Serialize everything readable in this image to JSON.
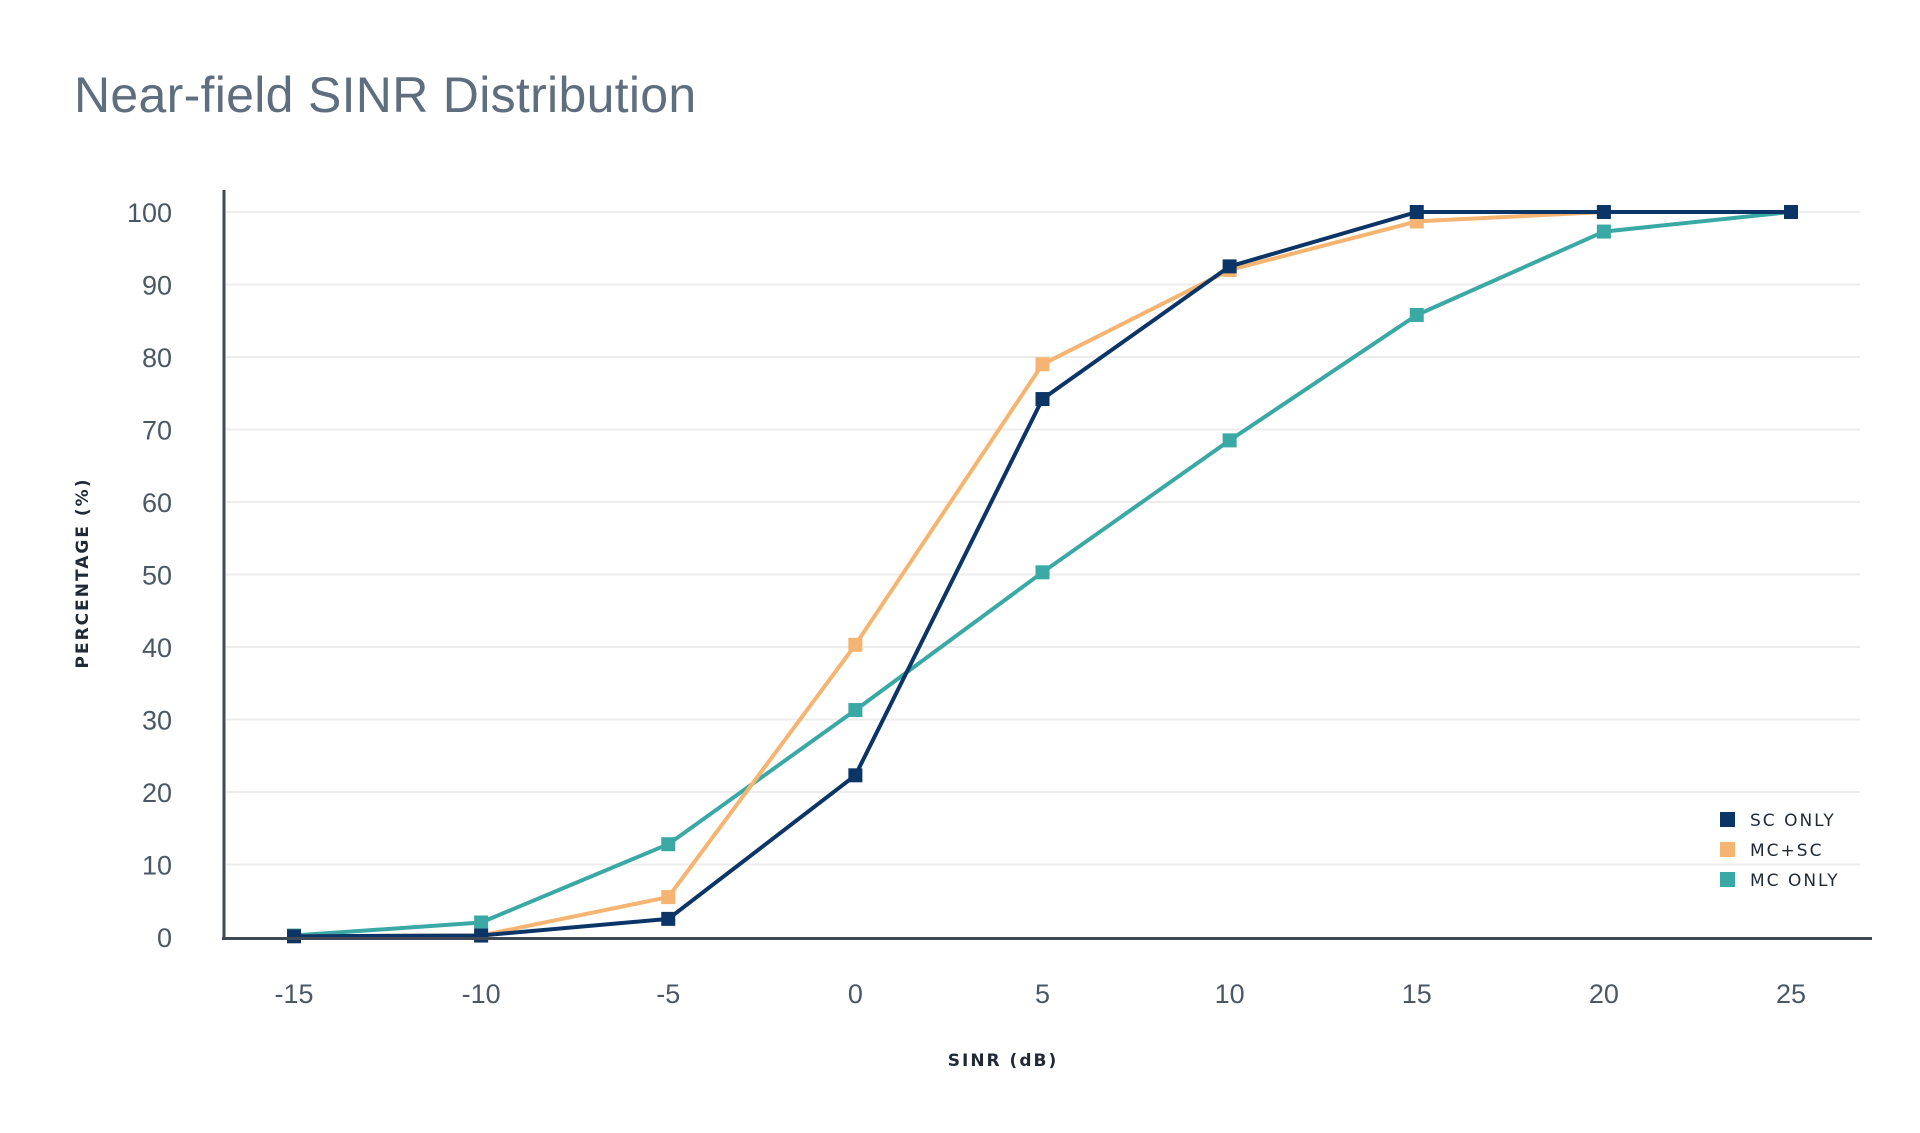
{
  "chart_data": {
    "type": "line",
    "title": "Near-field SINR Distribution",
    "xlabel": "SINR (dB)",
    "ylabel": "PERCENTAGE (%)",
    "x": [
      -15,
      -10,
      -5,
      0,
      5,
      10,
      15,
      20,
      25
    ],
    "x_tick_labels": [
      "-15",
      "-10",
      "-5",
      "0",
      "5",
      "10",
      "15",
      "20",
      "25"
    ],
    "y_ticks": [
      0,
      10,
      20,
      30,
      40,
      50,
      60,
      70,
      80,
      90,
      100
    ],
    "xlim": [
      -17,
      27
    ],
    "ylim": [
      0,
      100
    ],
    "grid": "horizontal",
    "legend_position": "bottom-right",
    "series": [
      {
        "name": "MC ONLY",
        "color": "#3aa8a4",
        "values": [
          0.2,
          2.0,
          12.8,
          31.3,
          50.3,
          68.5,
          85.8,
          97.3,
          100
        ]
      },
      {
        "name": "MC+SC",
        "color": "#f5b472",
        "values": [
          0.1,
          0.2,
          5.5,
          40.3,
          79.0,
          92.0,
          98.7,
          100,
          100
        ]
      },
      {
        "name": "SC ONLY",
        "color": "#0b3566",
        "values": [
          0.1,
          0.2,
          2.5,
          22.3,
          74.2,
          92.5,
          100,
          100,
          100
        ]
      }
    ],
    "legend": [
      "SC ONLY",
      "MC+SC",
      "MC ONLY"
    ]
  }
}
